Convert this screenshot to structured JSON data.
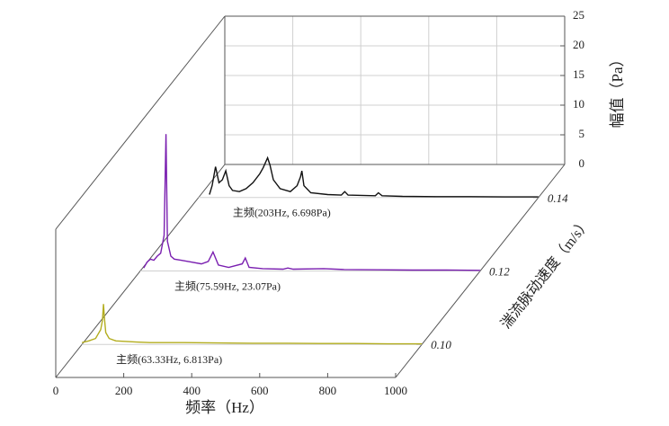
{
  "chart_data": {
    "type": "waterfall",
    "xlabel": "频率（Hz）",
    "ylabel": "幅值（Pa）",
    "zlabel": "湍流脉动速度（m/s）",
    "xlim": [
      0,
      1000
    ],
    "xticks": [
      0,
      200,
      400,
      600,
      800,
      1000
    ],
    "ylim": [
      0,
      25
    ],
    "yticks": [
      0,
      5,
      10,
      15,
      20,
      25
    ],
    "zlim": [
      0.091,
      0.149
    ],
    "zticks": [
      {
        "value": 0.1,
        "label": "0.10"
      },
      {
        "value": 0.12,
        "label": "0.12"
      },
      {
        "value": 0.14,
        "label": "0.14"
      }
    ],
    "grid": true,
    "series": [
      {
        "z": 0.1,
        "color": "#b3ad1e",
        "peak_label": "主频(63.33Hz, 6.813Pa)",
        "x": [
          0,
          20,
          40,
          55,
          60,
          63.33,
          66,
          70,
          80,
          100,
          130,
          160,
          200,
          300,
          400,
          500,
          600,
          700,
          800,
          900,
          1000
        ],
        "values": [
          0.3,
          0.6,
          1.0,
          2.5,
          4,
          6.813,
          4.5,
          2,
          1,
          0.6,
          0.5,
          0.4,
          0.3,
          0.3,
          0.25,
          0.2,
          0.2,
          0.15,
          0.15,
          0.1,
          0.1
        ]
      },
      {
        "z": 0.12,
        "color": "#7a1fb0",
        "peak_label": "主频(75.59Hz, 23.07Pa)",
        "x": [
          10,
          20,
          30,
          40,
          50,
          60,
          70,
          75.59,
          80,
          90,
          100,
          120,
          150,
          180,
          200,
          214,
          230,
          260,
          300,
          309,
          320,
          360,
          420,
          434,
          450,
          540,
          600,
          700,
          800,
          900,
          1000
        ],
        "values": [
          0.5,
          1.5,
          2.0,
          1.8,
          2.5,
          3,
          6,
          23.07,
          5,
          2.5,
          2.0,
          1.8,
          1.5,
          1.2,
          1.6,
          3.2,
          1.0,
          0.6,
          1.2,
          2.2,
          0.6,
          0.4,
          0.3,
          0.5,
          0.3,
          0.4,
          0.25,
          0.2,
          0.15,
          0.15,
          0.1
        ]
      },
      {
        "z": 0.14,
        "color": "#111111",
        "peak_label": "主频(203Hz, 6.698Pa)",
        "x": [
          32,
          40,
          50,
          60,
          70,
          80,
          90,
          100,
          120,
          140,
          160,
          180,
          190,
          203,
          210,
          220,
          240,
          270,
          290,
          300,
          304,
          310,
          330,
          380,
          420,
          430,
          440,
          520,
          529,
          540,
          600,
          700,
          800,
          900,
          1000
        ],
        "values": [
          0.5,
          2,
          5.2,
          2.5,
          3,
          4.5,
          2,
          1.2,
          1,
          1.5,
          2.5,
          4,
          5,
          6.698,
          5.5,
          3,
          1.5,
          1,
          2,
          3.5,
          4.5,
          2,
          0.8,
          0.5,
          0.4,
          1.0,
          0.4,
          0.3,
          0.8,
          0.3,
          0.2,
          0.15,
          0.15,
          0.1,
          0.1
        ]
      }
    ]
  }
}
